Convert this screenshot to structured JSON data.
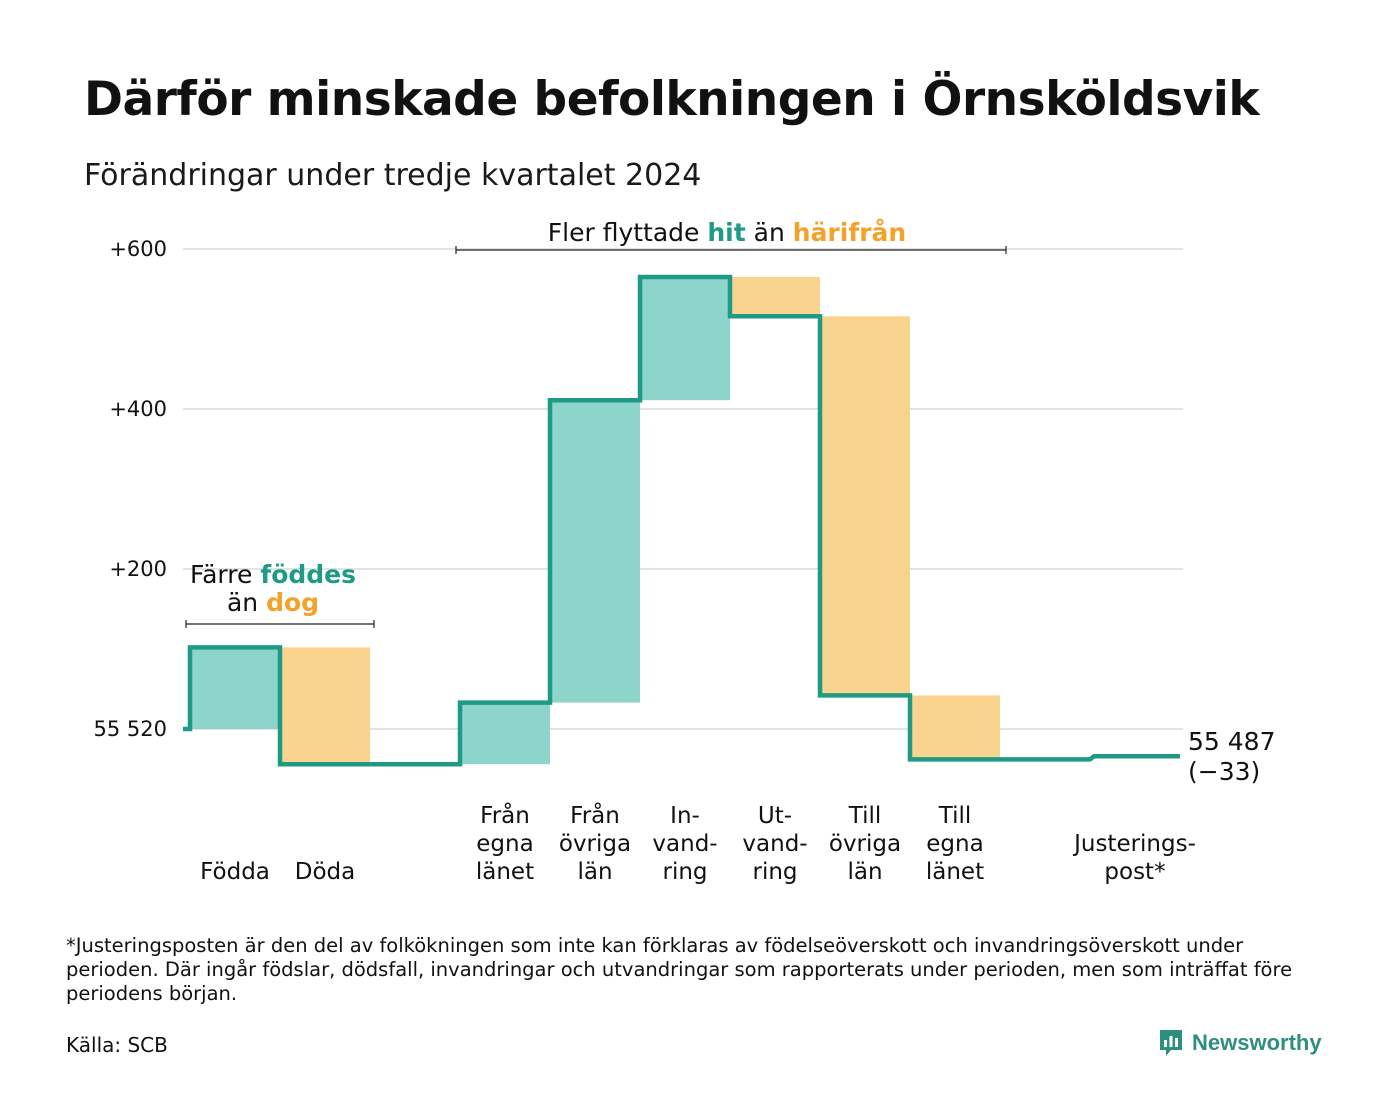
{
  "title": "Därför minskade befolkningen i Örnsköldsvik",
  "subtitle": "Förändringar under tredje kvartalet 2024",
  "colors": {
    "increase": "#8dd4ca",
    "decrease": "#f9d48e",
    "line": "#1f9a86",
    "accent_teal": "#1f9a86",
    "accent_orange": "#f4a12a",
    "grid": "#e3e3e3"
  },
  "annotations": {
    "births": {
      "line1_a": "Färre ",
      "line1_b": "föddes",
      "line2_a": "än ",
      "line2_b": "dog"
    },
    "migration": {
      "a": "Fler flyttade ",
      "b": "hit",
      "c": " än ",
      "d": "härifrån"
    }
  },
  "end_label": {
    "value": "55 487",
    "change": "(−33)"
  },
  "footnote": "*Justeringsposten är den del av folkökningen som inte kan förklaras av födelseöverskott och invandringsöverskott under perioden. Där ingår födslar, dödsfall, invandringar och utvandringar som rapporterats under perioden, men som inträffat före periodens början.",
  "source": "Källa: SCB",
  "logo": {
    "text": "Newsworthy",
    "icon": "newsworthy-chart-bubble-icon"
  },
  "chart_data": {
    "type": "waterfall",
    "start_value": 55520,
    "end_value": 55487,
    "total_change": -33,
    "y_ticks": [
      {
        "value": 0,
        "label": "55 520"
      },
      {
        "value": 200,
        "label": "+200"
      },
      {
        "value": 400,
        "label": "+400"
      },
      {
        "value": 600,
        "label": "+600"
      }
    ],
    "ylim": [
      -45,
      620
    ],
    "grid": true,
    "steps": [
      {
        "label": [
          "Födda"
        ],
        "value": 102,
        "kind": "increase"
      },
      {
        "label": [
          "Döda"
        ],
        "value": -146,
        "kind": "decrease"
      },
      {
        "label": [],
        "value": 0,
        "kind": "gap"
      },
      {
        "label": [
          "Från",
          "egna",
          "länet"
        ],
        "value": 77,
        "kind": "increase"
      },
      {
        "label": [
          "Från",
          "övriga",
          "län"
        ],
        "value": 378,
        "kind": "increase"
      },
      {
        "label": [
          "In-",
          "vand-",
          "ring"
        ],
        "value": 154,
        "kind": "increase"
      },
      {
        "label": [
          "Ut-",
          "vand-",
          "ring"
        ],
        "value": -49,
        "kind": "decrease"
      },
      {
        "label": [
          "Till",
          "övriga",
          "län"
        ],
        "value": -474,
        "kind": "decrease"
      },
      {
        "label": [
          "Till",
          "egna",
          "länet"
        ],
        "value": -80,
        "kind": "decrease"
      },
      {
        "label": [],
        "value": 0,
        "kind": "gap"
      },
      {
        "label": [
          "Justerings-",
          "post*"
        ],
        "value": 4,
        "kind": "adjustment"
      }
    ]
  }
}
